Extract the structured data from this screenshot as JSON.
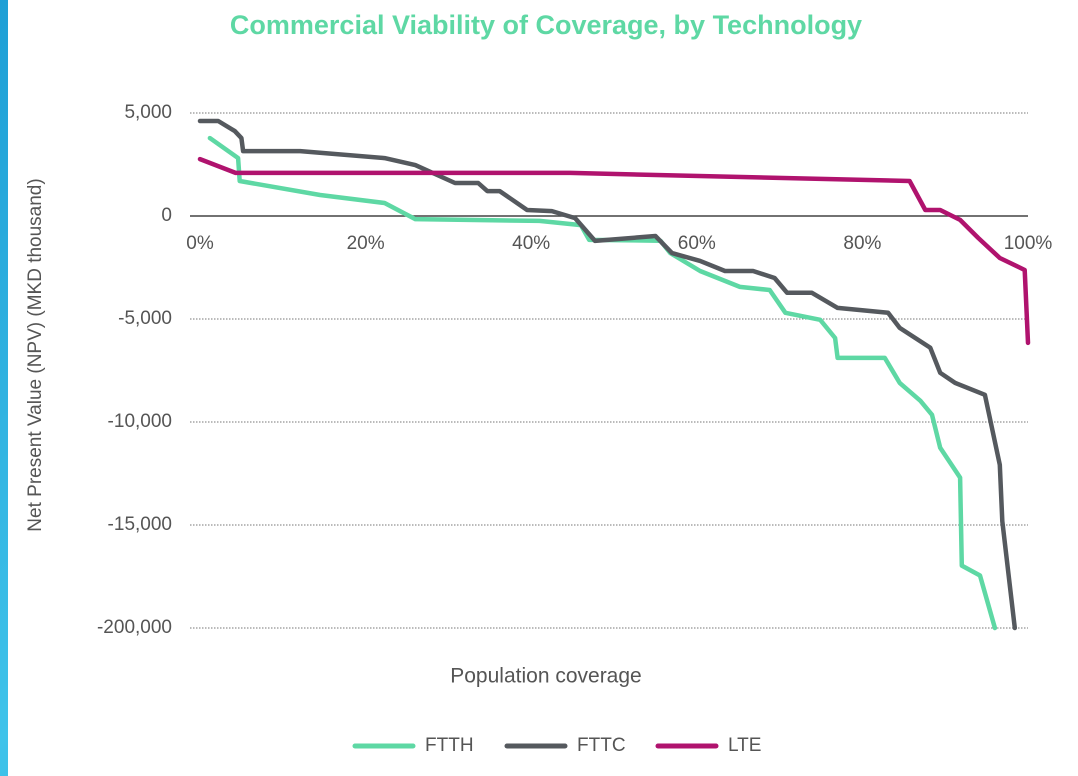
{
  "chart_data": {
    "type": "line",
    "title": "Commercial Viability of Coverage, by Technology",
    "x_label": "Population coverage",
    "y_label": "Net Present Value (NPV) (MKD thousand)",
    "xlim": [
      0,
      100
    ],
    "xticks": [
      {
        "value": 0,
        "label": "0%"
      },
      {
        "value": 20,
        "label": "20%"
      },
      {
        "value": 40,
        "label": "40%"
      },
      {
        "value": 60,
        "label": "60%"
      },
      {
        "value": 80,
        "label": "80%"
      },
      {
        "value": 100,
        "label": "100%"
      }
    ],
    "ylim": [
      -200000,
      5000
    ],
    "yticks": [
      {
        "value": 5000,
        "label": "5,000"
      },
      0,
      {
        "value": -5000,
        "label": "-5,000"
      },
      {
        "value": -10000,
        "label": "-10,000"
      },
      {
        "value": -15000,
        "label": "-15,000"
      },
      {
        "value": -200000,
        "label": "-200,000"
      }
    ],
    "grid": true,
    "legend": "bottom",
    "series": [
      {
        "name": "FTTH",
        "color": "#5ed8a4",
        "x": [
          1.2,
          4.6,
          4.8,
          14.5,
          22.3,
          26,
          41,
          46,
          47,
          55.6,
          56.8,
          60.4,
          65.2,
          68.8,
          70.7,
          74.9,
          76.7,
          77,
          82.7,
          84.5,
          87,
          88.4,
          89.4,
          91.8,
          92,
          94.2,
          96
        ],
        "values": [
          3780,
          2810,
          1700,
          1020,
          630,
          -150,
          -240,
          -440,
          -1160,
          -1200,
          -1800,
          -2670,
          -3440,
          -3590,
          -4700,
          -5040,
          -5920,
          -6890,
          -6890,
          -8100,
          -8970,
          -9650,
          -11250,
          -12700,
          -87900,
          -105700,
          -200000
        ]
      },
      {
        "name": "FTTC",
        "color": "#55595e",
        "x": [
          0,
          2.2,
          4.2,
          5,
          5.2,
          12.1,
          22.3,
          26,
          30.8,
          33.6,
          34.7,
          36.2,
          39.5,
          42.5,
          45.3,
          47.7,
          55,
          57,
          60.4,
          63.4,
          66.8,
          69.4,
          70.9,
          73.9,
          77,
          83.1,
          84.5,
          88.2,
          89.4,
          91.2,
          94.8,
          96.6,
          96.9,
          98.4
        ],
        "values": [
          4610,
          4610,
          4120,
          3780,
          3150,
          3150,
          2810,
          2470,
          1600,
          1600,
          1210,
          1210,
          290,
          240,
          -100,
          -1210,
          -970,
          -1800,
          -2180,
          -2670,
          -2670,
          -3010,
          -3730,
          -3730,
          -4460,
          -4700,
          -5430,
          -6400,
          -7610,
          -8100,
          -8680,
          -12080,
          -14810,
          -200000
        ]
      },
      {
        "name": "LTE",
        "color": "#b0136e",
        "x": [
          0,
          4.3,
          44.7,
          85.7,
          87.6,
          89.4,
          91.8,
          94,
          96.6,
          99.6,
          100
        ],
        "values": [
          2760,
          2090,
          2090,
          1700,
          290,
          290,
          -190,
          -1070,
          -2040,
          -2620,
          -6160
        ]
      }
    ]
  }
}
